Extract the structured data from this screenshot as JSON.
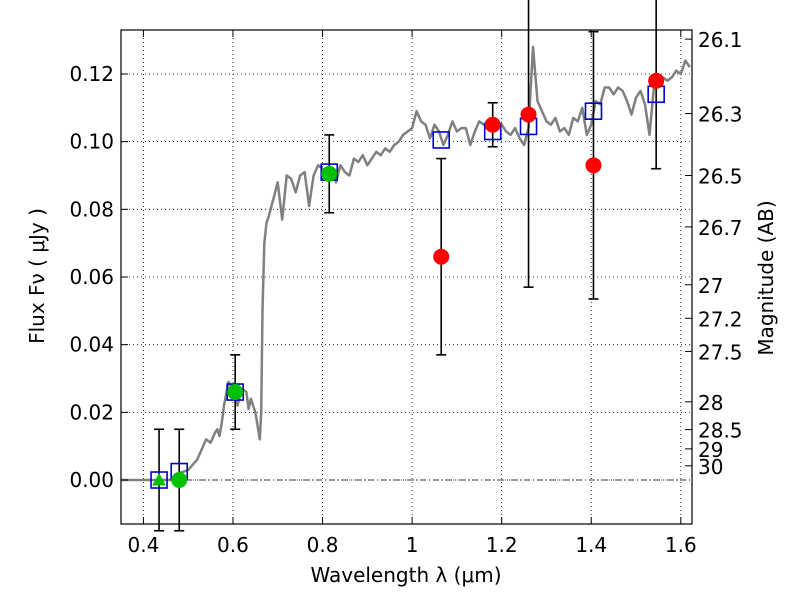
{
  "chart_data": {
    "type": "scatter",
    "title": "",
    "xlabel": "Wavelength  λ (μm)",
    "ylabel": "Flux  Fν  ( μJy )",
    "ylabel_right": "Magnitude (AB)",
    "xlim": [
      0.35,
      1.625
    ],
    "ylim": [
      -0.013,
      0.133
    ],
    "grid": true,
    "x_ticks": [
      {
        "value": 0.4,
        "label": "0.4"
      },
      {
        "value": 0.6,
        "label": "0.6"
      },
      {
        "value": 0.8,
        "label": "0.8"
      },
      {
        "value": 1.0,
        "label": "1"
      },
      {
        "value": 1.2,
        "label": "1.2"
      },
      {
        "value": 1.4,
        "label": "1.4"
      },
      {
        "value": 1.6,
        "label": "1.6"
      }
    ],
    "y_ticks": [
      {
        "value": 0.0,
        "label": "0.00"
      },
      {
        "value": 0.02,
        "label": "0.02"
      },
      {
        "value": 0.04,
        "label": "0.04"
      },
      {
        "value": 0.06,
        "label": "0.06"
      },
      {
        "value": 0.08,
        "label": "0.08"
      },
      {
        "value": 0.1,
        "label": "0.10"
      },
      {
        "value": 0.12,
        "label": "0.12"
      }
    ],
    "mag_ticks": [
      {
        "flux": 0.1303,
        "label": "26.1"
      },
      {
        "flux": 0.1083,
        "label": "26.3"
      },
      {
        "flux": 0.09,
        "label": "26.5"
      },
      {
        "flux": 0.0748,
        "label": "26.7"
      },
      {
        "flux": 0.0577,
        "label": "27"
      },
      {
        "flux": 0.0478,
        "label": "27.2"
      },
      {
        "flux": 0.038,
        "label": "27.5"
      },
      {
        "flux": 0.0231,
        "label": "28"
      },
      {
        "flux": 0.0149,
        "label": "28.5"
      },
      {
        "flux": 0.0092,
        "label": "29"
      },
      {
        "flux": 0.0042,
        "label": "30"
      }
    ],
    "colors": {
      "model": "#808080",
      "detected": "#00c000",
      "nir": "#ff0000",
      "model_box": "#0000cc",
      "error": "#000000",
      "grid": "#000000"
    },
    "series": [
      {
        "name": "model spectrum",
        "style": "line",
        "x": [
          0.35,
          0.42,
          0.44,
          0.46,
          0.48,
          0.5,
          0.52,
          0.53,
          0.54,
          0.55,
          0.56,
          0.565,
          0.57,
          0.575,
          0.58,
          0.59,
          0.6,
          0.61,
          0.62,
          0.63,
          0.635,
          0.64,
          0.645,
          0.65,
          0.655,
          0.66,
          0.663,
          0.666,
          0.67,
          0.675,
          0.68,
          0.69,
          0.7,
          0.71,
          0.72,
          0.73,
          0.74,
          0.75,
          0.76,
          0.77,
          0.78,
          0.79,
          0.8,
          0.81,
          0.82,
          0.83,
          0.84,
          0.85,
          0.86,
          0.87,
          0.88,
          0.89,
          0.9,
          0.91,
          0.92,
          0.93,
          0.94,
          0.95,
          0.96,
          0.97,
          0.98,
          0.99,
          1.0,
          1.01,
          1.02,
          1.03,
          1.04,
          1.05,
          1.06,
          1.07,
          1.08,
          1.09,
          1.1,
          1.11,
          1.12,
          1.13,
          1.14,
          1.15,
          1.16,
          1.17,
          1.18,
          1.19,
          1.2,
          1.21,
          1.22,
          1.23,
          1.24,
          1.25,
          1.26,
          1.27,
          1.28,
          1.29,
          1.3,
          1.31,
          1.32,
          1.33,
          1.34,
          1.35,
          1.36,
          1.37,
          1.38,
          1.39,
          1.4,
          1.41,
          1.42,
          1.43,
          1.44,
          1.45,
          1.46,
          1.47,
          1.48,
          1.49,
          1.5,
          1.51,
          1.52,
          1.53,
          1.54,
          1.55,
          1.56,
          1.57,
          1.58,
          1.59,
          1.6,
          1.61,
          1.62
        ],
        "values": [
          0.0,
          0.0,
          0.0,
          0.0,
          0.002,
          0.003,
          0.006,
          0.009,
          0.012,
          0.011,
          0.014,
          0.015,
          0.013,
          0.017,
          0.022,
          0.029,
          0.027,
          0.022,
          0.027,
          0.026,
          0.021,
          0.024,
          0.022,
          0.02,
          0.016,
          0.012,
          0.02,
          0.05,
          0.07,
          0.076,
          0.078,
          0.083,
          0.088,
          0.077,
          0.09,
          0.089,
          0.085,
          0.09,
          0.091,
          0.081,
          0.09,
          0.093,
          0.092,
          0.089,
          0.092,
          0.088,
          0.093,
          0.091,
          0.09,
          0.095,
          0.094,
          0.096,
          0.093,
          0.095,
          0.097,
          0.096,
          0.098,
          0.097,
          0.099,
          0.1,
          0.102,
          0.103,
          0.104,
          0.109,
          0.106,
          0.105,
          0.101,
          0.105,
          0.103,
          0.099,
          0.102,
          0.106,
          0.103,
          0.104,
          0.104,
          0.099,
          0.103,
          0.106,
          0.105,
          0.106,
          0.107,
          0.104,
          0.105,
          0.103,
          0.102,
          0.104,
          0.101,
          0.099,
          0.104,
          0.128,
          0.112,
          0.109,
          0.106,
          0.105,
          0.107,
          0.103,
          0.104,
          0.102,
          0.107,
          0.106,
          0.11,
          0.102,
          0.105,
          0.112,
          0.111,
          0.116,
          0.116,
          0.114,
          0.116,
          0.115,
          0.112,
          0.108,
          0.113,
          0.115,
          0.111,
          0.102,
          0.116,
          0.118,
          0.119,
          0.118,
          0.119,
          0.121,
          0.12,
          0.124,
          0.122
        ]
      },
      {
        "name": "model photometry",
        "style": "open-square",
        "x": [
          0.435,
          0.48,
          0.605,
          0.815,
          1.065,
          1.18,
          1.26,
          1.405,
          1.545
        ],
        "values": [
          0.0,
          0.0025,
          0.026,
          0.091,
          0.1005,
          0.103,
          0.1045,
          0.109,
          0.114
        ]
      },
      {
        "name": "optical detections",
        "style": "filled-circle",
        "x": [
          0.48,
          0.605,
          0.815
        ],
        "values": [
          0.0,
          0.026,
          0.0905
        ],
        "err": [
          0.015,
          0.011,
          0.0115
        ]
      },
      {
        "name": "optical upper point",
        "style": "filled-triangle",
        "x": [
          0.435
        ],
        "values": [
          0.0
        ],
        "err": [
          0.015
        ]
      },
      {
        "name": "near-IR photometry",
        "style": "filled-circle",
        "x": [
          1.065,
          1.18,
          1.26,
          1.405,
          1.545
        ],
        "values": [
          0.066,
          0.105,
          0.108,
          0.093,
          0.118
        ],
        "err": [
          0.029,
          0.0065,
          0.051,
          0.0395,
          0.026
        ]
      }
    ]
  }
}
